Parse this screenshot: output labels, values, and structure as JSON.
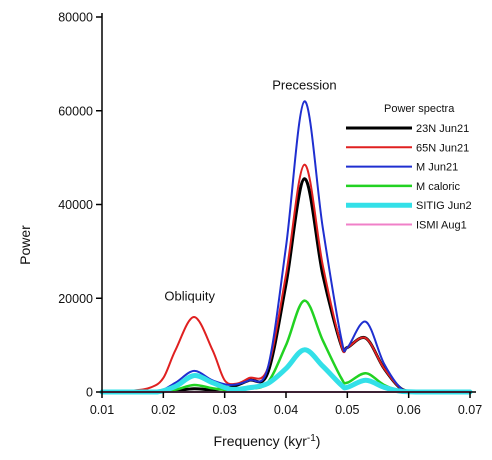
{
  "chart_data": {
    "type": "line",
    "title": "",
    "xlabel": "Frequency (kyr",
    "xlabel_sup": "-1",
    "xlabel_suffix": ")",
    "ylabel": "Power",
    "xlim": [
      0.01,
      0.07
    ],
    "ylim": [
      0,
      80000
    ],
    "x_ticks": [
      0.01,
      0.02,
      0.03,
      0.04,
      0.05,
      0.06,
      0.07
    ],
    "x_tick_labels": [
      "0.01",
      "0.02",
      "0.03",
      "0.04",
      "0.05",
      "0.06",
      "0.07"
    ],
    "y_ticks": [
      0,
      20000,
      40000,
      60000,
      80000
    ],
    "y_tick_labels": [
      "0",
      "20000",
      "40000",
      "60000",
      "80000"
    ],
    "grid": false,
    "legend_title": "Power spectra",
    "legend_position": "right",
    "annotations": [
      {
        "text": "Obliquity",
        "x": 0.0243,
        "y": 19500
      },
      {
        "text": "Precession",
        "x": 0.043,
        "y": 64500
      }
    ],
    "series": [
      {
        "name": "23N Jun21",
        "color": "#000000",
        "width": 3,
        "x": [
          0.01,
          0.015,
          0.019,
          0.022,
          0.025,
          0.028,
          0.031,
          0.034,
          0.037,
          0.04,
          0.043,
          0.046,
          0.049,
          0.05,
          0.053,
          0.056,
          0.059,
          0.062,
          0.07
        ],
        "y": [
          0,
          0,
          0,
          300,
          700,
          500,
          1000,
          2500,
          4000,
          23000,
          45500,
          25000,
          10000,
          9500,
          11500,
          5000,
          500,
          0,
          0
        ]
      },
      {
        "name": "65N Jun21",
        "color": "#e02020",
        "width": 2,
        "x": [
          0.01,
          0.015,
          0.018,
          0.02,
          0.022,
          0.025,
          0.028,
          0.03,
          0.032,
          0.034,
          0.037,
          0.04,
          0.043,
          0.046,
          0.049,
          0.05,
          0.053,
          0.056,
          0.059,
          0.062,
          0.07
        ],
        "y": [
          0,
          300,
          1000,
          3000,
          9000,
          16000,
          9000,
          2500,
          1800,
          3000,
          5000,
          25000,
          48500,
          27000,
          10000,
          9500,
          11500,
          5000,
          500,
          0,
          0
        ]
      },
      {
        "name": "M Jun21",
        "color": "#1f2fd0",
        "width": 2,
        "x": [
          0.01,
          0.015,
          0.019,
          0.022,
          0.025,
          0.028,
          0.031,
          0.034,
          0.037,
          0.04,
          0.043,
          0.046,
          0.049,
          0.05,
          0.053,
          0.056,
          0.059,
          0.062,
          0.07
        ],
        "y": [
          0,
          0,
          0,
          2000,
          4500,
          2500,
          1500,
          2500,
          5000,
          31000,
          62000,
          35000,
          11500,
          9500,
          15000,
          6000,
          500,
          0,
          0
        ]
      },
      {
        "name": "M caloric",
        "color": "#22d222",
        "width": 2.5,
        "x": [
          0.01,
          0.015,
          0.019,
          0.022,
          0.025,
          0.028,
          0.031,
          0.034,
          0.037,
          0.04,
          0.043,
          0.046,
          0.049,
          0.05,
          0.053,
          0.056,
          0.059,
          0.062,
          0.07
        ],
        "y": [
          0,
          0,
          0,
          500,
          1500,
          800,
          400,
          700,
          2000,
          10000,
          19500,
          11000,
          3000,
          2000,
          4000,
          1500,
          100,
          0,
          0
        ]
      },
      {
        "name": "SITIG Jun2",
        "color": "#33e0e8",
        "width": 5,
        "x": [
          0.01,
          0.015,
          0.019,
          0.022,
          0.025,
          0.028,
          0.031,
          0.034,
          0.037,
          0.04,
          0.043,
          0.046,
          0.049,
          0.05,
          0.053,
          0.056,
          0.059,
          0.062,
          0.07
        ],
        "y": [
          0,
          0,
          0,
          1200,
          3500,
          2000,
          600,
          900,
          1800,
          5000,
          9000,
          5500,
          1500,
          1000,
          2500,
          1000,
          100,
          0,
          0
        ]
      },
      {
        "name": "ISMI Aug1",
        "color": "#f080c8",
        "width": 2,
        "x": [
          0.01,
          0.07
        ],
        "y": [
          0,
          0
        ]
      }
    ]
  }
}
